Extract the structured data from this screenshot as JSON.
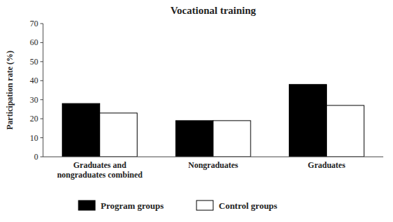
{
  "chart_data": {
    "type": "bar",
    "title": "Vocational training",
    "categories": [
      "Graduates and\nnongraduates combined",
      "Nongraduates",
      "Graduates"
    ],
    "series": [
      {
        "name": "Program groups",
        "color": "#000000",
        "values": [
          28,
          19,
          38
        ]
      },
      {
        "name": "Control groups",
        "color": "#ffffff",
        "values": [
          23,
          19,
          27
        ]
      }
    ],
    "ylabel": "Participation rate (%)",
    "ylim": [
      0,
      70
    ],
    "yticks": [
      0,
      10,
      20,
      30,
      40,
      50,
      60,
      70
    ],
    "grid": false,
    "legend": "bottom"
  }
}
